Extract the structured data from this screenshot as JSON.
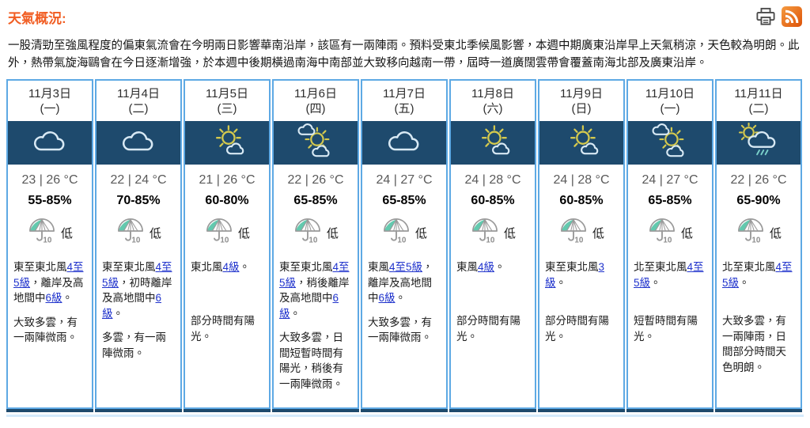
{
  "page": {
    "title": "天氣概況:",
    "intro": "一股清勁至強風程度的偏東氣流會在今明兩日影響華南沿岸，該區有一兩陣雨。預料受東北季候風影響，本週中期廣東沿岸早上天氣稍涼，天色較為明朗。此外，熱帶氣旋海鷗會在今日逐漸增強，於本週中後期橫過南海中南部並大致移向越南一帶，屆時一道廣闊雲帶會覆蓋南海北部及廣東沿岸。"
  },
  "header_icons": {
    "print": "printer-icon",
    "rss": "rss-icon"
  },
  "colors": {
    "title_orange": "#f15d22",
    "panel_navy": "#1e4a6d",
    "card_border_blue": "#5ea9e4",
    "link_blue": "#2033cc",
    "temp_gray": "#5a5a5a",
    "psr_teal": "#63c9ae",
    "rss_orange": "#e86a18"
  },
  "cards": [
    {
      "date1": "11月3日",
      "date2": "(一)",
      "icon": "cloud",
      "temp": "23 | 26 °C",
      "humidity": "55-85%",
      "psr_value": "10",
      "psr_label": "低",
      "wind": [
        {
          "text": "東至東北風",
          "link": false
        },
        {
          "text": "4至5級",
          "link": true
        },
        {
          "text": "，離岸及高地間中",
          "link": false
        },
        {
          "text": "6級",
          "link": true
        },
        {
          "text": "。",
          "link": false
        }
      ],
      "condition": "大致多雲，有一兩陣微雨。"
    },
    {
      "date1": "11月4日",
      "date2": "(二)",
      "icon": "cloud",
      "temp": "22 | 24 °C",
      "humidity": "70-85%",
      "psr_value": "10",
      "psr_label": "低",
      "wind": [
        {
          "text": "東至東北風",
          "link": false
        },
        {
          "text": "4至5級",
          "link": true
        },
        {
          "text": "，初時離岸及高地間中",
          "link": false
        },
        {
          "text": "6級",
          "link": true
        },
        {
          "text": "。",
          "link": false
        }
      ],
      "condition": "多雲，有一兩陣微雨。"
    },
    {
      "date1": "11月5日",
      "date2": "(三)",
      "icon": "sun-cloud",
      "temp": "21 | 26 °C",
      "humidity": "60-80%",
      "psr_value": "10",
      "psr_label": "低",
      "wind": [
        {
          "text": "東北風",
          "link": false
        },
        {
          "text": "4級",
          "link": true
        },
        {
          "text": "。",
          "link": false
        }
      ],
      "condition": "部分時間有陽光。"
    },
    {
      "date1": "11月6日",
      "date2": "(四)",
      "icon": "cloud-sun-cloud",
      "temp": "22 | 26 °C",
      "humidity": "65-85%",
      "psr_value": "10",
      "psr_label": "低",
      "wind": [
        {
          "text": "東至東北風",
          "link": false
        },
        {
          "text": "4至5級",
          "link": true
        },
        {
          "text": "，稍後離岸及高地間中",
          "link": false
        },
        {
          "text": "6級",
          "link": true
        },
        {
          "text": "。",
          "link": false
        }
      ],
      "condition": "大致多雲，日間短暫時間有陽光，稍後有一兩陣微雨。"
    },
    {
      "date1": "11月7日",
      "date2": "(五)",
      "icon": "cloud",
      "temp": "24 | 27 °C",
      "humidity": "65-85%",
      "psr_value": "10",
      "psr_label": "低",
      "wind": [
        {
          "text": "東風",
          "link": false
        },
        {
          "text": "4至5級",
          "link": true
        },
        {
          "text": "，離岸及高地間中",
          "link": false
        },
        {
          "text": "6級",
          "link": true
        },
        {
          "text": "。",
          "link": false
        }
      ],
      "condition": "大致多雲，有一兩陣微雨。"
    },
    {
      "date1": "11月8日",
      "date2": "(六)",
      "icon": "sun-cloud",
      "temp": "24 | 28 °C",
      "humidity": "60-85%",
      "psr_value": "10",
      "psr_label": "低",
      "wind": [
        {
          "text": "東風",
          "link": false
        },
        {
          "text": "4級",
          "link": true
        },
        {
          "text": "。",
          "link": false
        }
      ],
      "condition": "部分時間有陽光。"
    },
    {
      "date1": "11月9日",
      "date2": "(日)",
      "icon": "sun-cloud",
      "temp": "24 | 28 °C",
      "humidity": "60-85%",
      "psr_value": "10",
      "psr_label": "低",
      "wind": [
        {
          "text": "東至東北風",
          "link": false
        },
        {
          "text": "3級",
          "link": true
        },
        {
          "text": "。",
          "link": false
        }
      ],
      "condition": "部分時間有陽光。"
    },
    {
      "date1": "11月10日",
      "date2": "(一)",
      "icon": "cloud-sun-cloud",
      "temp": "24 | 27 °C",
      "humidity": "65-85%",
      "psr_value": "10",
      "psr_label": "低",
      "wind": [
        {
          "text": "北至東北風",
          "link": false
        },
        {
          "text": "4至5級",
          "link": true
        },
        {
          "text": "。",
          "link": false
        }
      ],
      "condition": "短暫時間有陽光。"
    },
    {
      "date1": "11月11日",
      "date2": "(二)",
      "icon": "rain-sun-cloud",
      "temp": "22 | 26 °C",
      "humidity": "65-90%",
      "psr_value": "10",
      "psr_label": "低",
      "wind": [
        {
          "text": "北至東北風",
          "link": false
        },
        {
          "text": "4至5級",
          "link": true
        },
        {
          "text": "。",
          "link": false
        }
      ],
      "condition": "大致多雲，有一兩陣雨，日間部分時間天色明朗。"
    }
  ]
}
